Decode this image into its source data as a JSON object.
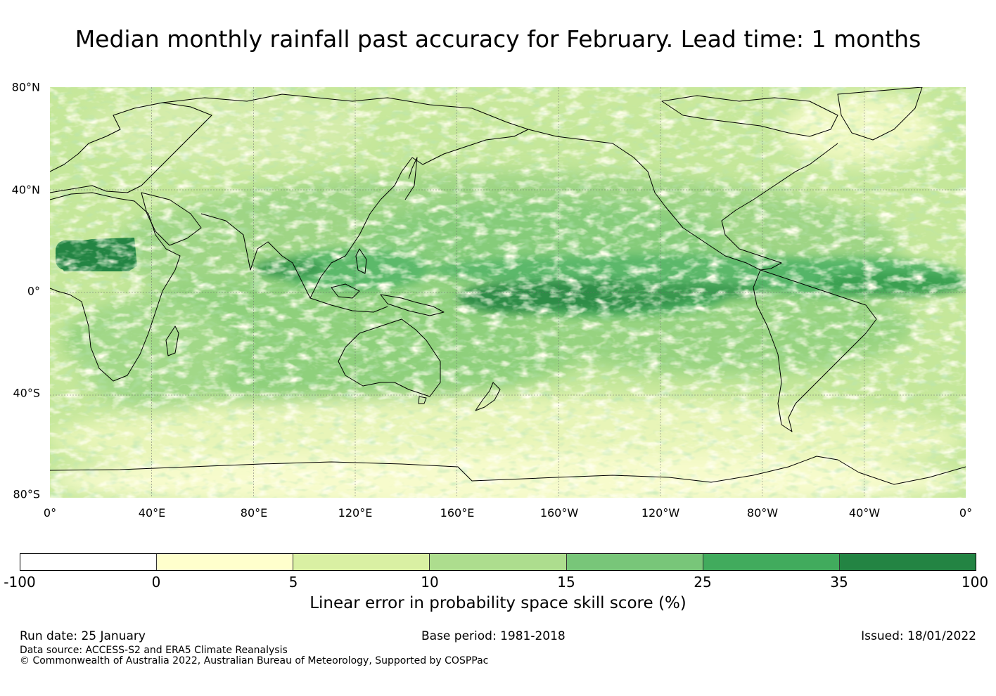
{
  "title": "Median monthly rainfall past accuracy for February. Lead time: 1 months",
  "map": {
    "lat_labels": [
      "80°N",
      "40°N",
      "0°",
      "40°S",
      "80°S"
    ],
    "lon_labels": [
      "0°",
      "40°E",
      "80°E",
      "120°E",
      "160°E",
      "160°W",
      "120°W",
      "80°W",
      "40°W",
      "0°"
    ]
  },
  "colorbar": {
    "bins": [
      {
        "from": -100,
        "to": 0,
        "color": "#ffffff"
      },
      {
        "from": 0,
        "to": 5,
        "color": "#ffffcc"
      },
      {
        "from": 5,
        "to": 10,
        "color": "#d9f0a3"
      },
      {
        "from": 10,
        "to": 15,
        "color": "#addd8e"
      },
      {
        "from": 15,
        "to": 25,
        "color": "#78c679"
      },
      {
        "from": 25,
        "to": 35,
        "color": "#41ab5d"
      },
      {
        "from": 35,
        "to": 100,
        "color": "#238443"
      }
    ],
    "tick_labels": [
      "-100",
      "0",
      "5",
      "10",
      "15",
      "25",
      "35",
      "100"
    ],
    "label": "Linear error in probability space skill score (%)"
  },
  "footer": {
    "run_date": "Run date: 25 January",
    "base_period": "Base period: 1981-2018",
    "issued": "Issued: 18/01/2022",
    "data_source": "Data source: ACCESS-S2 and ERA5 Climate Reanalysis",
    "copyright": "© Commonwealth of Australia 2022, Australian Bureau of Meteorology, Supported by COSPPac"
  }
}
